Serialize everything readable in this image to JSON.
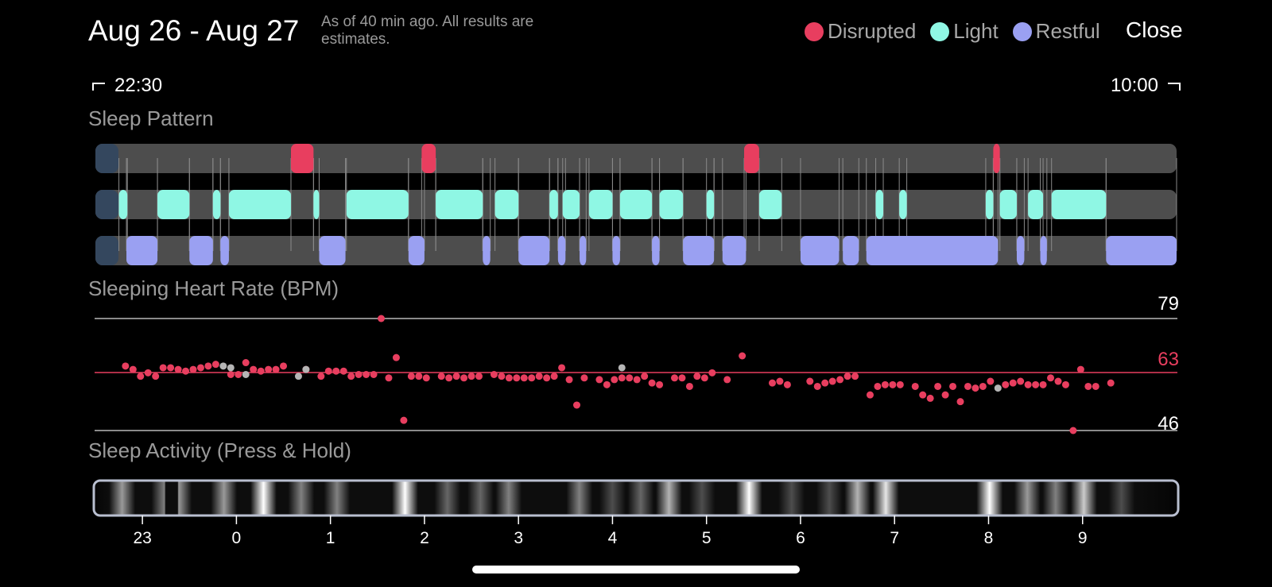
{
  "header": {
    "date_range": "Aug 26 - Aug 27",
    "as_of": "As of 40 min ago. All results are estimates.",
    "close_label": "Close",
    "legend": [
      {
        "label": "Disrupted",
        "color": "#e83e5f"
      },
      {
        "label": "Light",
        "color": "#8ff7e4"
      },
      {
        "label": "Restful",
        "color": "#9aa0f2"
      }
    ]
  },
  "time_range": {
    "start": "22:30",
    "end": "10:00"
  },
  "sections": {
    "sleep_pattern": "Sleep Pattern",
    "heart_rate": "Sleeping Heart Rate (BPM)",
    "activity": "Sleep Activity (Press & Hold)"
  },
  "colors": {
    "disrupted": "#e83e5f",
    "light": "#8ff7e4",
    "restful": "#9aa0f2",
    "track": "#4d4d4d",
    "hr_point": "#e83e5f",
    "hr_gray": "#b5b5b5"
  },
  "chart_data": [
    {
      "type": "timeline",
      "name": "Sleep Pattern",
      "x_unit": "hours_after_22:30",
      "x_range": [
        0,
        11.5
      ],
      "disrupted": [
        [
          2.08,
          2.32
        ],
        [
          3.47,
          3.62
        ],
        [
          6.9,
          7.06
        ],
        [
          9.55,
          9.62
        ]
      ],
      "light": [
        [
          0.25,
          0.34
        ],
        [
          0.66,
          1.0
        ],
        [
          1.25,
          1.33
        ],
        [
          1.42,
          2.08
        ],
        [
          2.32,
          2.38
        ],
        [
          2.67,
          3.33
        ],
        [
          3.62,
          4.12
        ],
        [
          4.25,
          4.5
        ],
        [
          4.83,
          4.92
        ],
        [
          4.97,
          5.15
        ],
        [
          5.25,
          5.5
        ],
        [
          5.58,
          5.92
        ],
        [
          6.0,
          6.25
        ],
        [
          6.5,
          6.58
        ],
        [
          7.06,
          7.3
        ],
        [
          8.3,
          8.38
        ],
        [
          8.55,
          8.63
        ],
        [
          9.47,
          9.55
        ],
        [
          9.62,
          9.8
        ],
        [
          9.92,
          10.08
        ],
        [
          10.17,
          10.75
        ]
      ],
      "restful": [
        [
          0.33,
          0.66
        ],
        [
          1.0,
          1.25
        ],
        [
          1.33,
          1.42
        ],
        [
          2.38,
          2.66
        ],
        [
          3.33,
          3.5
        ],
        [
          4.12,
          4.2
        ],
        [
          4.5,
          4.83
        ],
        [
          4.92,
          5.0
        ],
        [
          5.15,
          5.22
        ],
        [
          5.5,
          5.58
        ],
        [
          5.92,
          6.0
        ],
        [
          6.25,
          6.58
        ],
        [
          6.67,
          6.92
        ],
        [
          7.5,
          7.91
        ],
        [
          7.95,
          8.12
        ],
        [
          8.2,
          9.6
        ],
        [
          9.8,
          9.88
        ],
        [
          10.05,
          10.12
        ],
        [
          10.75,
          11.5
        ]
      ]
    },
    {
      "type": "scatter",
      "name": "Sleeping Heart Rate (BPM)",
      "x_unit": "hours_after_22:30",
      "ylim": [
        46,
        79
      ],
      "reference_lines": {
        "max": 79,
        "avg": 63,
        "min": 46
      },
      "points": [
        [
          0.32,
          65
        ],
        [
          0.4,
          64
        ],
        [
          0.48,
          62
        ],
        [
          0.56,
          63
        ],
        [
          0.64,
          62
        ],
        [
          0.72,
          64.5
        ],
        [
          0.8,
          64.5
        ],
        [
          0.88,
          64
        ],
        [
          0.96,
          63.5
        ],
        [
          1.04,
          64
        ],
        [
          1.12,
          64.5
        ],
        [
          1.2,
          65
        ],
        [
          1.28,
          65.5
        ],
        [
          1.44,
          62.5
        ],
        [
          1.52,
          62.5
        ],
        [
          1.6,
          66
        ],
        [
          1.68,
          64
        ],
        [
          1.76,
          63.5
        ],
        [
          1.84,
          64
        ],
        [
          1.92,
          64
        ],
        [
          2.0,
          65
        ],
        [
          2.24,
          64
        ],
        [
          2.4,
          62
        ],
        [
          2.48,
          63.5
        ],
        [
          2.56,
          63.5
        ],
        [
          2.64,
          63.5
        ],
        [
          2.72,
          62
        ],
        [
          2.8,
          62.5
        ],
        [
          2.88,
          62.5
        ],
        [
          2.96,
          62.5
        ],
        [
          3.04,
          79
        ],
        [
          3.12,
          61.5
        ],
        [
          3.2,
          67.5
        ],
        [
          3.28,
          49
        ],
        [
          3.36,
          62
        ],
        [
          3.44,
          62
        ],
        [
          3.52,
          61.5
        ],
        [
          3.68,
          62
        ],
        [
          3.76,
          61.5
        ],
        [
          3.84,
          62
        ],
        [
          3.92,
          61.5
        ],
        [
          4.0,
          62
        ],
        [
          4.08,
          62
        ],
        [
          4.24,
          62.5
        ],
        [
          4.32,
          62
        ],
        [
          4.4,
          61.5
        ],
        [
          4.48,
          61.5
        ],
        [
          4.56,
          61.5
        ],
        [
          4.64,
          61.5
        ],
        [
          4.72,
          62
        ],
        [
          4.8,
          61.5
        ],
        [
          4.88,
          62
        ],
        [
          4.96,
          64.5
        ],
        [
          5.04,
          61
        ],
        [
          5.12,
          53.5
        ],
        [
          5.2,
          61.5
        ],
        [
          5.36,
          61
        ],
        [
          5.44,
          59.5
        ],
        [
          5.52,
          61
        ],
        [
          5.6,
          61.5
        ],
        [
          5.68,
          61.5
        ],
        [
          5.76,
          61
        ],
        [
          5.84,
          62
        ],
        [
          5.92,
          60
        ],
        [
          6.0,
          59.5
        ],
        [
          6.16,
          61.5
        ],
        [
          6.24,
          61.5
        ],
        [
          6.32,
          59
        ],
        [
          6.4,
          62
        ],
        [
          6.48,
          61.5
        ],
        [
          6.56,
          63
        ],
        [
          6.72,
          61
        ],
        [
          6.88,
          68
        ],
        [
          7.2,
          60
        ],
        [
          7.28,
          60.5
        ],
        [
          7.36,
          59.5
        ],
        [
          7.6,
          60.5
        ],
        [
          7.68,
          59
        ],
        [
          7.76,
          60
        ],
        [
          7.84,
          60.5
        ],
        [
          7.92,
          61
        ],
        [
          8.0,
          62
        ],
        [
          8.08,
          62
        ],
        [
          8.24,
          56.5
        ],
        [
          8.32,
          59
        ],
        [
          8.4,
          59.5
        ],
        [
          8.48,
          59.5
        ],
        [
          8.56,
          59.5
        ],
        [
          8.72,
          59
        ],
        [
          8.8,
          56.5
        ],
        [
          8.88,
          55.5
        ],
        [
          8.96,
          59
        ],
        [
          9.04,
          56.5
        ],
        [
          9.12,
          59
        ],
        [
          9.2,
          54.5
        ],
        [
          9.28,
          59
        ],
        [
          9.36,
          58.5
        ],
        [
          9.44,
          59
        ],
        [
          9.52,
          60.5
        ],
        [
          9.68,
          59.5
        ],
        [
          9.76,
          60
        ],
        [
          9.84,
          60.5
        ],
        [
          9.92,
          59.5
        ],
        [
          10.0,
          59.5
        ],
        [
          10.08,
          59.5
        ],
        [
          10.16,
          61.5
        ],
        [
          10.24,
          60.5
        ],
        [
          10.32,
          59.5
        ],
        [
          10.4,
          46
        ],
        [
          10.48,
          64
        ],
        [
          10.56,
          59
        ],
        [
          10.64,
          59
        ],
        [
          10.8,
          60
        ]
      ],
      "gray_points": [
        [
          1.36,
          65
        ],
        [
          1.44,
          64.5
        ],
        [
          1.6,
          62.5
        ],
        [
          2.16,
          62
        ],
        [
          2.24,
          64
        ],
        [
          5.6,
          64.5
        ],
        [
          9.6,
          58.5
        ]
      ]
    },
    {
      "type": "heatmap",
      "name": "Sleep Activity (Press & Hold)",
      "x_unit": "hours_after_22:30",
      "x_ticks": [
        "23",
        "0",
        "1",
        "2",
        "3",
        "4",
        "5",
        "6",
        "7",
        "8",
        "9"
      ],
      "bands": [
        [
          0.3,
          0.6
        ],
        [
          0.75,
          0.5
        ],
        [
          0.9,
          0.6
        ],
        [
          1.38,
          0.6
        ],
        [
          1.8,
          1.0
        ],
        [
          2.2,
          0.5
        ],
        [
          2.58,
          0.5
        ],
        [
          3.3,
          1.0
        ],
        [
          3.75,
          0.4
        ],
        [
          4.1,
          0.4
        ],
        [
          4.4,
          0.5
        ],
        [
          5.15,
          0.5
        ],
        [
          5.5,
          0.3
        ],
        [
          5.8,
          0.4
        ],
        [
          6.1,
          0.7
        ],
        [
          6.45,
          0.3
        ],
        [
          6.95,
          1.0
        ],
        [
          7.4,
          0.3
        ],
        [
          7.8,
          0.3
        ],
        [
          8.1,
          0.7
        ],
        [
          8.4,
          0.9
        ],
        [
          9.5,
          1.0
        ],
        [
          9.9,
          0.6
        ],
        [
          10.2,
          0.5
        ],
        [
          10.5,
          0.8
        ],
        [
          10.9,
          0.3
        ]
      ]
    }
  ]
}
